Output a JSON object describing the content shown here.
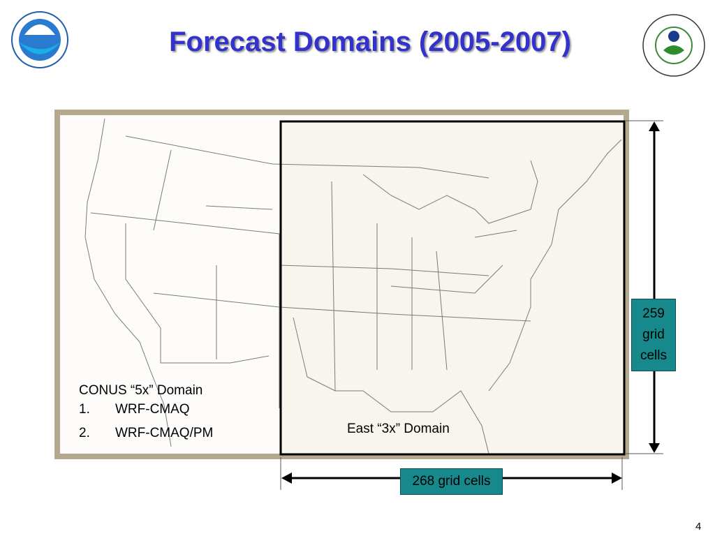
{
  "header": {
    "title": "Forecast Domains (2005-2007)"
  },
  "conus": {
    "heading": "CONUS “5x” Domain",
    "items": [
      {
        "number": "1.",
        "text": "WRF-CMAQ"
      },
      {
        "number": "2.",
        "text": "WRF-CMAQ/PM"
      }
    ]
  },
  "east": {
    "label": "East “3x” Domain"
  },
  "vertical_extent": {
    "lines": [
      "259",
      "grid",
      "cells"
    ]
  },
  "horizontal_extent": {
    "label": "268 grid cells"
  },
  "footer": {
    "page_number": "4"
  }
}
